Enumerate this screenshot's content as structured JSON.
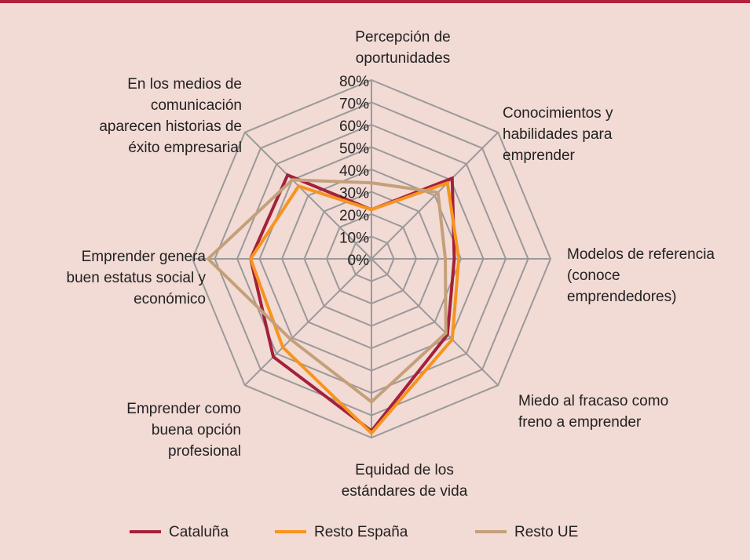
{
  "chart_data": {
    "type": "radar",
    "categories": [
      "Percepción de\noportunidades",
      "Conocimientos y\nhabilidades para\nemprender",
      "Modelos de referencia\n(conoce\nemprendedores)",
      "Miedo al fracaso como\nfreno a emprender",
      "Equidad de los\nestándares de vida",
      "Emprender como\nbuena opción\nprofesional",
      "Emprender genera\nbuen estatus social y\neconómico",
      "En los medios de\ncomunicación\naparecen historias de\néxito empresarial"
    ],
    "series": [
      {
        "name": "Cataluña",
        "color": "#a3213a",
        "values": [
          22,
          51,
          37,
          48,
          77,
          62,
          54,
          53
        ]
      },
      {
        "name": "Resto España",
        "color": "#f7941d",
        "values": [
          22,
          48,
          39,
          51,
          78,
          56,
          54,
          46
        ]
      },
      {
        "name": "Resto UE",
        "color": "#c4a07a",
        "values": [
          34,
          42,
          33,
          47,
          64,
          51,
          73,
          50
        ]
      }
    ],
    "rlim": [
      0,
      80
    ],
    "rticks": [
      {
        "value": 0,
        "label": "0%"
      },
      {
        "value": 10,
        "label": "10%"
      },
      {
        "value": 20,
        "label": "20%"
      },
      {
        "value": 30,
        "label": "30%"
      },
      {
        "value": 40,
        "label": "40%"
      },
      {
        "value": 50,
        "label": "50%"
      },
      {
        "value": 60,
        "label": "60%"
      },
      {
        "value": 70,
        "label": "70%"
      },
      {
        "value": 80,
        "label": "80%"
      }
    ],
    "grid": true
  }
}
